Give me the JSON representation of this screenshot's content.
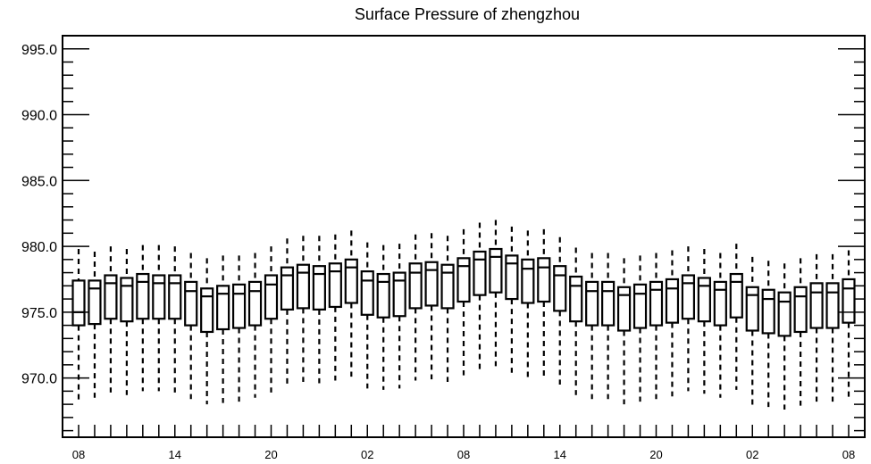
{
  "chart_data": {
    "type": "box",
    "title": "Surface Pressure of zhengzhou",
    "xlabel": "",
    "ylabel": "",
    "ylim": [
      965.5,
      996.0
    ],
    "y_ticks": [
      970.0,
      975.0,
      980.0,
      985.0,
      990.0,
      995.0
    ],
    "y_tick_labels": [
      "970.0",
      "975.0",
      "980.0",
      "985.0",
      "990.0",
      "995.0"
    ],
    "x_tick_labels": [
      "08",
      "14",
      "20",
      "02",
      "08",
      "14",
      "20",
      "02",
      "08"
    ],
    "x_tick_positions": [
      0,
      6,
      12,
      18,
      24,
      30,
      36,
      42,
      48
    ],
    "grid": false,
    "boxes": [
      {
        "t": 0,
        "min": 968.3,
        "q1": 974.0,
        "median": 975.0,
        "q3": 977.4,
        "max": 979.8
      },
      {
        "t": 1,
        "min": 968.5,
        "q1": 974.1,
        "median": 976.8,
        "q3": 977.4,
        "max": 979.6
      },
      {
        "t": 2,
        "min": 968.9,
        "q1": 974.5,
        "median": 977.2,
        "q3": 977.8,
        "max": 980.0
      },
      {
        "t": 3,
        "min": 968.7,
        "q1": 974.3,
        "median": 977.0,
        "q3": 977.6,
        "max": 979.8
      },
      {
        "t": 4,
        "min": 969.0,
        "q1": 974.5,
        "median": 977.3,
        "q3": 977.9,
        "max": 980.1
      },
      {
        "t": 5,
        "min": 969.0,
        "q1": 974.5,
        "median": 977.2,
        "q3": 977.8,
        "max": 980.1
      },
      {
        "t": 6,
        "min": 968.9,
        "q1": 974.5,
        "median": 977.2,
        "q3": 977.8,
        "max": 980.0
      },
      {
        "t": 7,
        "min": 968.4,
        "q1": 974.0,
        "median": 976.6,
        "q3": 977.3,
        "max": 979.5
      },
      {
        "t": 8,
        "min": 968.0,
        "q1": 973.5,
        "median": 976.2,
        "q3": 976.8,
        "max": 979.1
      },
      {
        "t": 9,
        "min": 968.1,
        "q1": 973.7,
        "median": 976.4,
        "q3": 977.0,
        "max": 979.3
      },
      {
        "t": 10,
        "min": 968.2,
        "q1": 973.8,
        "median": 976.4,
        "q3": 977.1,
        "max": 979.3
      },
      {
        "t": 11,
        "min": 968.5,
        "q1": 974.0,
        "median": 976.6,
        "q3": 977.3,
        "max": 979.5
      },
      {
        "t": 12,
        "min": 968.9,
        "q1": 974.5,
        "median": 977.1,
        "q3": 977.8,
        "max": 980.0
      },
      {
        "t": 13,
        "min": 969.5,
        "q1": 975.2,
        "median": 977.8,
        "q3": 978.4,
        "max": 980.6
      },
      {
        "t": 14,
        "min": 969.7,
        "q1": 975.3,
        "median": 978.0,
        "q3": 978.6,
        "max": 980.8
      },
      {
        "t": 15,
        "min": 969.6,
        "q1": 975.2,
        "median": 977.9,
        "q3": 978.5,
        "max": 980.8
      },
      {
        "t": 16,
        "min": 969.8,
        "q1": 975.4,
        "median": 978.1,
        "q3": 978.7,
        "max": 980.9
      },
      {
        "t": 17,
        "min": 970.1,
        "q1": 975.7,
        "median": 978.4,
        "q3": 979.0,
        "max": 981.2
      },
      {
        "t": 18,
        "min": 969.2,
        "q1": 974.8,
        "median": 977.4,
        "q3": 978.1,
        "max": 980.3
      },
      {
        "t": 19,
        "min": 969.1,
        "q1": 974.6,
        "median": 977.3,
        "q3": 977.9,
        "max": 980.1
      },
      {
        "t": 20,
        "min": 969.2,
        "q1": 974.7,
        "median": 977.4,
        "q3": 978.0,
        "max": 980.2
      },
      {
        "t": 21,
        "min": 969.8,
        "q1": 975.3,
        "median": 978.0,
        "q3": 978.7,
        "max": 980.9
      },
      {
        "t": 22,
        "min": 969.9,
        "q1": 975.5,
        "median": 978.2,
        "q3": 978.8,
        "max": 981.0
      },
      {
        "t": 23,
        "min": 969.7,
        "q1": 975.3,
        "median": 978.0,
        "q3": 978.6,
        "max": 980.8
      },
      {
        "t": 24,
        "min": 970.2,
        "q1": 975.8,
        "median": 978.5,
        "q3": 979.1,
        "max": 981.3
      },
      {
        "t": 25,
        "min": 970.6,
        "q1": 976.3,
        "median": 979.0,
        "q3": 979.6,
        "max": 981.8
      },
      {
        "t": 26,
        "min": 970.9,
        "q1": 976.5,
        "median": 979.2,
        "q3": 979.8,
        "max": 982.0
      },
      {
        "t": 27,
        "min": 970.4,
        "q1": 976.0,
        "median": 978.7,
        "q3": 979.3,
        "max": 981.5
      },
      {
        "t": 28,
        "min": 970.0,
        "q1": 975.7,
        "median": 978.3,
        "q3": 979.0,
        "max": 981.2
      },
      {
        "t": 29,
        "min": 970.1,
        "q1": 975.8,
        "median": 978.4,
        "q3": 979.1,
        "max": 981.3
      },
      {
        "t": 30,
        "min": 969.5,
        "q1": 975.1,
        "median": 977.8,
        "q3": 978.5,
        "max": 980.7
      },
      {
        "t": 31,
        "min": 968.7,
        "q1": 974.3,
        "median": 977.0,
        "q3": 977.7,
        "max": 979.9
      },
      {
        "t": 32,
        "min": 968.4,
        "q1": 974.0,
        "median": 976.6,
        "q3": 977.3,
        "max": 979.5
      },
      {
        "t": 33,
        "min": 968.4,
        "q1": 974.0,
        "median": 976.6,
        "q3": 977.3,
        "max": 979.5
      },
      {
        "t": 34,
        "min": 968.0,
        "q1": 973.6,
        "median": 976.3,
        "q3": 976.9,
        "max": 979.1
      },
      {
        "t": 35,
        "min": 968.2,
        "q1": 973.8,
        "median": 976.4,
        "q3": 977.1,
        "max": 979.3
      },
      {
        "t": 36,
        "min": 968.4,
        "q1": 974.0,
        "median": 976.7,
        "q3": 977.3,
        "max": 979.5
      },
      {
        "t": 37,
        "min": 968.6,
        "q1": 974.2,
        "median": 976.8,
        "q3": 977.5,
        "max": 979.7
      },
      {
        "t": 38,
        "min": 969.0,
        "q1": 974.5,
        "median": 977.2,
        "q3": 977.8,
        "max": 980.0
      },
      {
        "t": 39,
        "min": 968.8,
        "q1": 974.3,
        "median": 977.0,
        "q3": 977.6,
        "max": 979.8
      },
      {
        "t": 40,
        "min": 968.5,
        "q1": 974.0,
        "median": 976.7,
        "q3": 977.3,
        "max": 979.5
      },
      {
        "t": 41,
        "min": 969.1,
        "q1": 974.6,
        "median": 977.3,
        "q3": 977.9,
        "max": 980.2
      },
      {
        "t": 42,
        "min": 967.9,
        "q1": 973.6,
        "median": 976.3,
        "q3": 976.9,
        "max": 979.2
      },
      {
        "t": 43,
        "min": 967.8,
        "q1": 973.4,
        "median": 976.0,
        "q3": 976.7,
        "max": 978.9
      },
      {
        "t": 44,
        "min": 967.6,
        "q1": 973.2,
        "median": 975.8,
        "q3": 976.5,
        "max": 978.7
      },
      {
        "t": 45,
        "min": 967.9,
        "q1": 973.5,
        "median": 976.2,
        "q3": 976.9,
        "max": 979.1
      },
      {
        "t": 46,
        "min": 968.2,
        "q1": 973.8,
        "median": 976.5,
        "q3": 977.2,
        "max": 979.4
      },
      {
        "t": 47,
        "min": 968.2,
        "q1": 973.8,
        "median": 976.5,
        "q3": 977.2,
        "max": 979.4
      },
      {
        "t": 48,
        "min": 968.5,
        "q1": 974.2,
        "median": 976.8,
        "q3": 977.5,
        "max": 979.7
      }
    ]
  }
}
